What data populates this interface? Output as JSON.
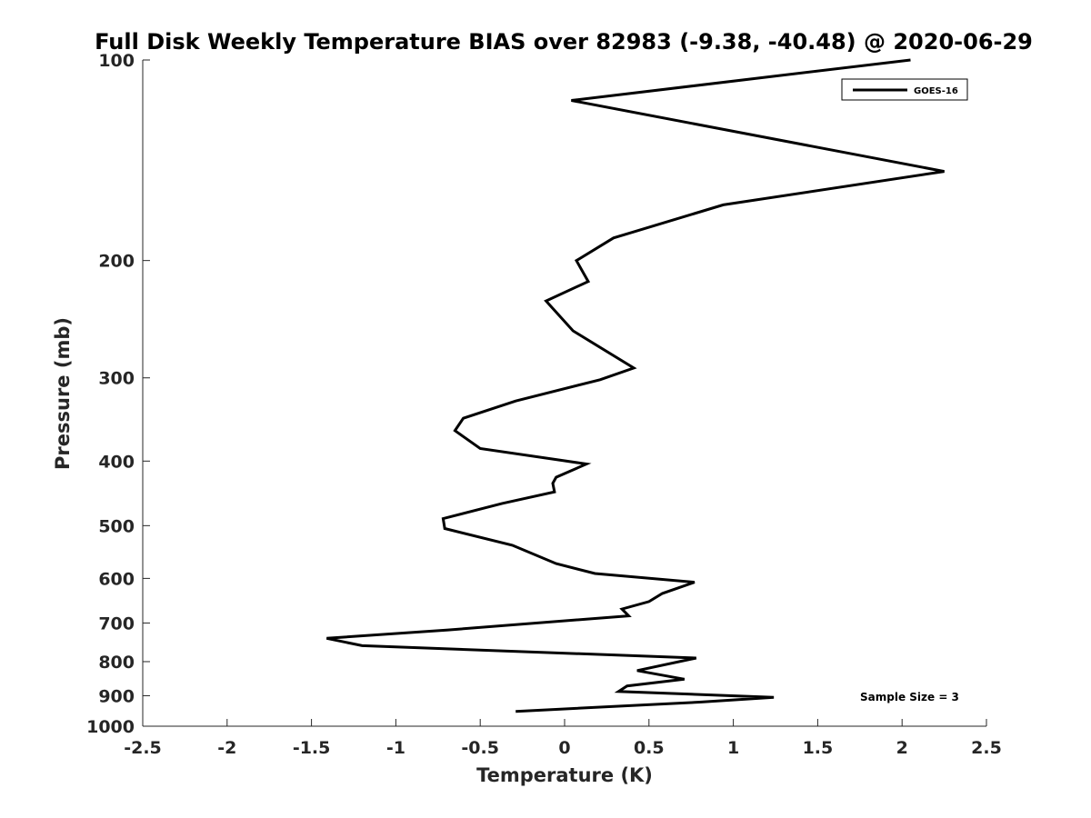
{
  "chart_data": {
    "type": "line",
    "title": "Full Disk Weekly Temperature BIAS over 82983 (-9.38, -40.48) @ 2020-06-29",
    "xlabel": "Temperature (K)",
    "ylabel": "Pressure (mb)",
    "xlim": [
      -2.5,
      2.5
    ],
    "ylim": [
      100,
      1000
    ],
    "y_scale": "log",
    "y_reversed": true,
    "grid": false,
    "x_ticks": [
      -2.5,
      -2,
      -1.5,
      -1,
      -0.5,
      0,
      0.5,
      1,
      1.5,
      2,
      2.5
    ],
    "x_tick_labels": [
      "-2.5",
      "-2",
      "-1.5",
      "-1",
      "-0.5",
      "0",
      "0.5",
      "1",
      "1.5",
      "2",
      "2.5"
    ],
    "y_ticks": [
      100,
      200,
      300,
      400,
      500,
      600,
      700,
      800,
      900,
      1000
    ],
    "y_tick_labels": [
      "100",
      "200",
      "300",
      "400",
      "500",
      "600",
      "700",
      "800",
      "900",
      "1000"
    ],
    "legend_position": "top-right",
    "series": [
      {
        "name": "GOES-16",
        "color": "#000000",
        "x": [
          2.05,
          0.04,
          2.25,
          0.94,
          0.29,
          0.07,
          0.14,
          -0.11,
          0.05,
          0.41,
          0.21,
          -0.29,
          -0.6,
          -0.65,
          -0.5,
          0.13,
          -0.05,
          -0.07,
          -0.06,
          -0.37,
          -0.72,
          -0.71,
          -0.31,
          -0.05,
          0.18,
          0.77,
          0.58,
          0.5,
          0.34,
          0.38,
          -0.69,
          -1.41,
          -1.2,
          0.78,
          0.43,
          0.71,
          0.37,
          0.32,
          1.24,
          0.8,
          -0.29
        ],
        "y": [
          100,
          115,
          147,
          165,
          185,
          200,
          215,
          230,
          255,
          290,
          302,
          325,
          345,
          360,
          383,
          404,
          423,
          432,
          445,
          463,
          488,
          505,
          535,
          570,
          590,
          608,
          632,
          650,
          667,
          683,
          717,
          738,
          757,
          790,
          825,
          850,
          870,
          887,
          905,
          920,
          950
        ]
      }
    ],
    "annotations": [
      "Sample Size = 3"
    ]
  }
}
